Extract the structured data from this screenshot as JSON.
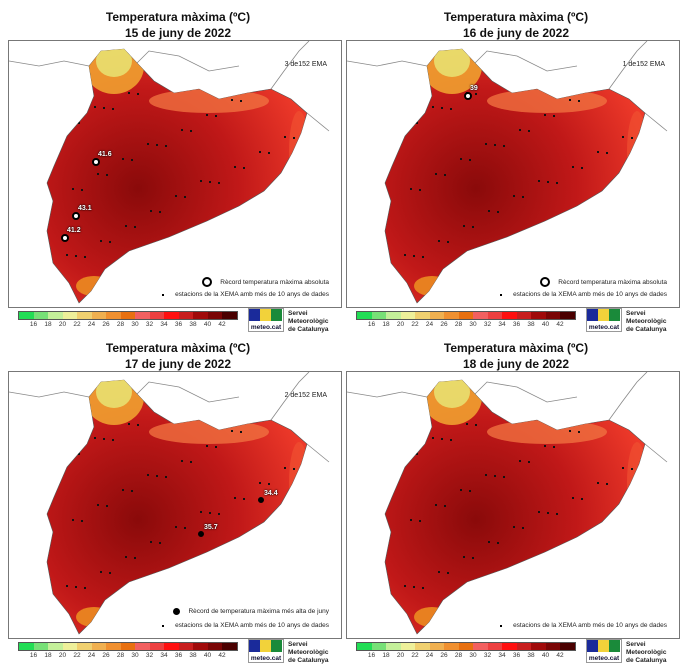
{
  "panels": [
    {
      "title": "Temperatura màxima (ºC)",
      "date": "15 de juny de 2022",
      "ema": "3 de152 EMA",
      "legend_record": "Rècord temperatura màxima absoluta",
      "record_marker": "ring",
      "legend_stations": "estacions de la XEMA amb més de 10 anys de dades",
      "records": [
        {
          "value": "41.6"
        },
        {
          "value": "43.1"
        },
        {
          "value": "41.2"
        }
      ]
    },
    {
      "title": "Temperatura màxima (ºC)",
      "date": "16 de juny de 2022",
      "ema": "1 de152 EMA",
      "legend_record": "Rècord temperatura màxima absoluta",
      "record_marker": "ring",
      "legend_stations": "estacions de la XEMA amb més de 10 anys de dades",
      "records": [
        {
          "value": "39"
        }
      ]
    },
    {
      "title": "Temperatura màxima (ºC)",
      "date": "17 de juny de 2022",
      "ema": "2 de152 EMA",
      "legend_record": "Rècord de temperatura màxima més alta de juny",
      "record_marker": "filled",
      "legend_stations": "estacions de la XEMA amb més de 10 anys de dades",
      "records": [
        {
          "value": "34.4"
        },
        {
          "value": "35.7"
        }
      ]
    },
    {
      "title": "Temperatura màxima (ºC)",
      "date": "18 de juny de 2022",
      "ema": "",
      "legend_record": "",
      "record_marker": "none",
      "legend_stations": "estacions de la XEMA amb més de 10 anys de dades",
      "records": []
    }
  ],
  "colorbar": {
    "ticks": [
      "16",
      "18",
      "20",
      "22",
      "24",
      "26",
      "28",
      "30",
      "32",
      "34",
      "36",
      "38",
      "40",
      "42"
    ],
    "colors": [
      "#22dd55",
      "#77e077",
      "#c4f09a",
      "#eef09a",
      "#f0d070",
      "#f0b050",
      "#f09030",
      "#e87010",
      "#f26060",
      "#ec4040",
      "#ff1010",
      "#c81e1e",
      "#a00a0a",
      "#7a0505",
      "#4a0000"
    ]
  },
  "logo": {
    "text": "meteo.cat",
    "org_line1": "Servei Meteorològic",
    "org_line2": "de Catalunya"
  }
}
